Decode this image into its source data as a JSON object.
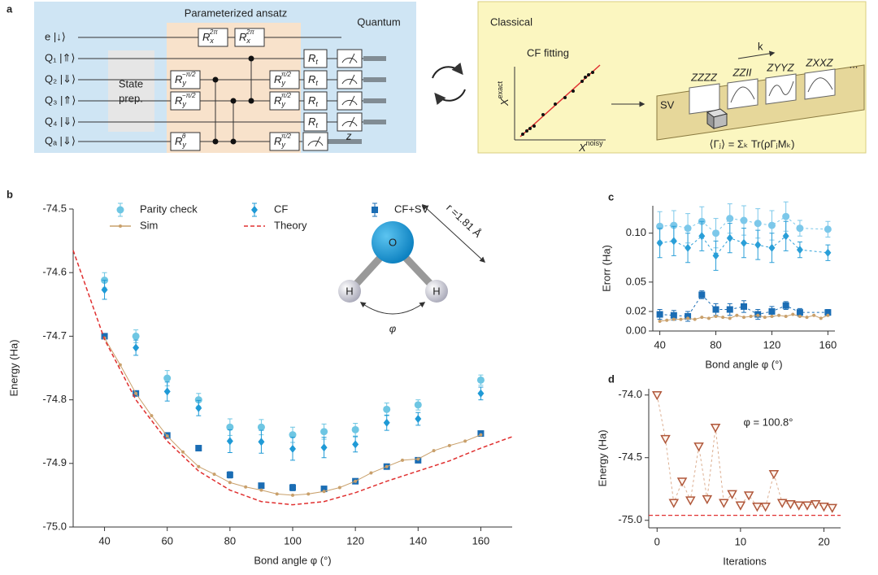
{
  "panel_a": {
    "label": "a",
    "ansatz_title": "Parameterized ansatz",
    "quantum_title": "Quantum",
    "classical_title": "Classical",
    "qubits": [
      "e |↓⟩",
      "Q₁ |⇑⟩",
      "Q₂ |⇓⟩",
      "Q₃ |⇑⟩",
      "Q₄ |⇓⟩",
      "Qₐ |⇓⟩"
    ],
    "state_prep": [
      "State",
      "prep."
    ],
    "gates": [
      {
        "base": "R",
        "sub": "x",
        "sup": "2π"
      },
      {
        "base": "R",
        "sub": "x",
        "sup": "2π"
      },
      {
        "base": "R",
        "sub": "y",
        "sup": "−π/2"
      },
      {
        "base": "R",
        "sub": "y",
        "sup": "−π/2"
      },
      {
        "base": "R",
        "sub": "y",
        "sup": "θ"
      },
      {
        "base": "R",
        "sub": "y",
        "sup": "π/2"
      },
      {
        "base": "R",
        "sub": "y",
        "sup": "π/2"
      },
      {
        "base": "R",
        "sub": "y",
        "sup": "π/2"
      },
      {
        "base": "R",
        "sub": "t",
        "sup": ""
      },
      {
        "base": "R",
        "sub": "t",
        "sup": ""
      },
      {
        "base": "R",
        "sub": "t",
        "sup": ""
      },
      {
        "base": "R",
        "sub": "t",
        "sup": ""
      }
    ],
    "measure_basis": "z",
    "fit_title": "CF fitting",
    "fit_ylabel": {
      "base": "X",
      "sup": "exact"
    },
    "fit_xlabel": {
      "base": "X",
      "sup": "noisy"
    },
    "sv_label": "SV",
    "k_label": "k",
    "observables": [
      "ZZZZ",
      "ZZII",
      "ZYYZ",
      "ZXXZ"
    ],
    "ellipsis": "...",
    "formula": "⟨Γⱼ⟩ = Σₖ Tr(ρΓⱼMₖ)"
  },
  "chart_data": [
    {
      "type": "scatter",
      "panel_label": "b",
      "xlabel": "Bond angle φ (°)",
      "ylabel": "Energy (Ha)",
      "xlim": [
        30,
        170
      ],
      "xticks": [
        40,
        60,
        80,
        100,
        120,
        140,
        160
      ],
      "ylim": [
        -75.0,
        -74.5
      ],
      "yticks": [
        {
          "value": -75.0,
          "label": "-75.0"
        },
        -74.9,
        -74.8,
        -74.7,
        -74.6,
        -74.5
      ],
      "legend": true,
      "series": [
        {
          "name": "Parity check",
          "color": "#6ec6e3",
          "marker": "circle",
          "linestyle": "none",
          "x": [
            40,
            50,
            60,
            70,
            80,
            90,
            100,
            110,
            120,
            130,
            140,
            160
          ],
          "values": [
            -74.612,
            -74.7,
            -74.766,
            -74.8,
            -74.843,
            -74.843,
            -74.855,
            -74.85,
            -74.847,
            -74.815,
            -74.808,
            -74.769
          ],
          "errors": [
            0.012,
            0.01,
            0.012,
            0.01,
            0.013,
            0.012,
            0.012,
            0.012,
            0.01,
            0.01,
            0.008,
            0.008
          ]
        },
        {
          "name": "CF",
          "color": "#1f9ad6",
          "marker": "diamond",
          "linestyle": "none",
          "x": [
            40,
            50,
            60,
            70,
            80,
            90,
            100,
            110,
            120,
            130,
            140,
            160
          ],
          "values": [
            -74.627,
            -74.718,
            -74.787,
            -74.813,
            -74.865,
            -74.866,
            -74.877,
            -74.875,
            -74.87,
            -74.836,
            -74.83,
            -74.79
          ],
          "errors": [
            0.015,
            0.012,
            0.015,
            0.012,
            0.018,
            0.018,
            0.018,
            0.016,
            0.012,
            0.012,
            0.01,
            0.01
          ]
        },
        {
          "name": "CF+SV",
          "color": "#1b6db4",
          "marker": "square",
          "linestyle": "none",
          "x": [
            40,
            50,
            60,
            70,
            80,
            90,
            100,
            110,
            120,
            130,
            140,
            160
          ],
          "values": [
            -74.7,
            -74.79,
            -74.856,
            -74.876,
            -74.918,
            -74.935,
            -74.938,
            -74.94,
            -74.928,
            -74.905,
            -74.895,
            -74.853
          ],
          "errors": [
            0.004,
            0.003,
            0.003,
            0.003,
            0.005,
            0.004,
            0.005,
            0.004,
            0.003,
            0.003,
            0.003,
            0.003
          ]
        },
        {
          "name": "Sim",
          "color": "#c9a06b",
          "marker": "dot",
          "linestyle": "solid",
          "x": [
            40,
            45,
            50,
            55,
            60,
            65,
            70,
            75,
            80,
            85,
            90,
            95,
            100,
            105,
            110,
            115,
            120,
            125,
            130,
            135,
            140,
            145,
            150,
            155,
            160
          ],
          "values": [
            -74.703,
            -74.745,
            -74.79,
            -74.825,
            -74.857,
            -74.882,
            -74.905,
            -74.917,
            -74.93,
            -74.937,
            -74.942,
            -74.948,
            -74.95,
            -74.948,
            -74.944,
            -74.938,
            -74.928,
            -74.915,
            -74.905,
            -74.895,
            -74.893,
            -74.88,
            -74.872,
            -74.865,
            -74.855
          ]
        },
        {
          "name": "Theory",
          "color": "#e03030",
          "marker": "none",
          "linestyle": "dashed",
          "x": [
            30,
            40,
            50,
            60,
            70,
            80,
            90,
            100,
            110,
            120,
            130,
            140,
            150,
            160,
            170
          ],
          "values": [
            -74.565,
            -74.705,
            -74.8,
            -74.865,
            -74.912,
            -74.942,
            -74.96,
            -74.965,
            -74.96,
            -74.946,
            -74.928,
            -74.912,
            -74.896,
            -74.876,
            -74.858
          ]
        }
      ],
      "molecule": {
        "center": "O",
        "left": "H",
        "right": "H",
        "angle": "φ",
        "bond": "r =1.81 Å"
      }
    },
    {
      "type": "scatter",
      "panel_label": "c",
      "xlabel": "Bond angle φ (°)",
      "ylabel": "Erorr (Ha)",
      "xlim": [
        35,
        165
      ],
      "xticks": [
        40,
        80,
        120,
        160
      ],
      "ylim": [
        0,
        0.128
      ],
      "yticks": [
        {
          "value": 0,
          "label": "0.00"
        },
        0.02,
        0.05,
        {
          "value": 0.1,
          "label": "0.10"
        }
      ],
      "series": [
        {
          "color": "#7cc8ea",
          "marker": "circle",
          "linestyle": "dashed",
          "x": [
            40,
            50,
            60,
            70,
            80,
            90,
            100,
            110,
            120,
            130,
            140,
            160
          ],
          "values": [
            0.107,
            0.108,
            0.105,
            0.112,
            0.1,
            0.115,
            0.113,
            0.11,
            0.108,
            0.117,
            0.105,
            0.104
          ],
          "errors": [
            0.015,
            0.015,
            0.015,
            0.015,
            0.015,
            0.015,
            0.015,
            0.015,
            0.015,
            0.015,
            0.008,
            0.008
          ]
        },
        {
          "color": "#2a9fd8",
          "marker": "diamond",
          "linestyle": "dashed",
          "x": [
            40,
            50,
            60,
            70,
            80,
            90,
            100,
            110,
            120,
            130,
            140,
            160
          ],
          "values": [
            0.09,
            0.092,
            0.085,
            0.097,
            0.077,
            0.095,
            0.09,
            0.088,
            0.085,
            0.097,
            0.083,
            0.08
          ],
          "errors": [
            0.015,
            0.015,
            0.015,
            0.015,
            0.015,
            0.015,
            0.015,
            0.015,
            0.015,
            0.015,
            0.008,
            0.008
          ]
        },
        {
          "color": "#1b6db4",
          "marker": "square",
          "linestyle": "dashed",
          "x": [
            40,
            50,
            60,
            70,
            80,
            90,
            100,
            110,
            120,
            130,
            140,
            160
          ],
          "values": [
            0.017,
            0.016,
            0.015,
            0.037,
            0.022,
            0.022,
            0.025,
            0.017,
            0.02,
            0.026,
            0.019,
            0.019
          ],
          "errors": [
            0.005,
            0.005,
            0.005,
            0.004,
            0.006,
            0.006,
            0.006,
            0.005,
            0.005,
            0.004,
            0.004,
            0.003
          ]
        },
        {
          "color": "#c9a06b",
          "marker": "dot",
          "linestyle": "solid",
          "x": [
            40,
            45,
            50,
            55,
            60,
            65,
            70,
            75,
            80,
            85,
            90,
            95,
            100,
            105,
            110,
            115,
            120,
            125,
            130,
            135,
            140,
            145,
            150,
            155,
            160
          ],
          "values": [
            0.01,
            0.011,
            0.012,
            0.012,
            0.013,
            0.012,
            0.014,
            0.013,
            0.015,
            0.014,
            0.013,
            0.016,
            0.014,
            0.015,
            0.016,
            0.014,
            0.015,
            0.016,
            0.015,
            0.017,
            0.015,
            0.014,
            0.016,
            0.013,
            0.016
          ]
        }
      ]
    },
    {
      "type": "line",
      "panel_label": "d",
      "xlabel": "Iterations",
      "ylabel": "Energy (Ha)",
      "xlim": [
        -1,
        22
      ],
      "xticks": [
        0,
        10,
        20
      ],
      "ylim": [
        -75.06,
        -73.95
      ],
      "yticks": [
        {
          "value": -75.0,
          "label": "-75.0"
        },
        -74.5,
        {
          "value": -74.0,
          "label": "-74.0"
        }
      ],
      "series": [
        {
          "color": "#b0573a",
          "line_color": "#dcae90",
          "marker": "triangle-down",
          "linestyle": "dashed",
          "x": [
            0,
            1,
            2,
            3,
            4,
            5,
            6,
            7,
            8,
            9,
            10,
            11,
            12,
            13,
            14,
            15,
            16,
            17,
            18,
            19,
            20,
            21
          ],
          "values": [
            -74.0,
            -74.35,
            -74.86,
            -74.69,
            -74.84,
            -74.41,
            -74.83,
            -74.26,
            -74.86,
            -74.79,
            -74.88,
            -74.8,
            -74.89,
            -74.89,
            -74.63,
            -74.86,
            -74.87,
            -74.88,
            -74.88,
            -74.87,
            -74.89,
            -74.9
          ]
        }
      ],
      "reference_line": {
        "value": -74.96,
        "color": "#e03030"
      },
      "annotation": "φ = 100.8°"
    }
  ]
}
